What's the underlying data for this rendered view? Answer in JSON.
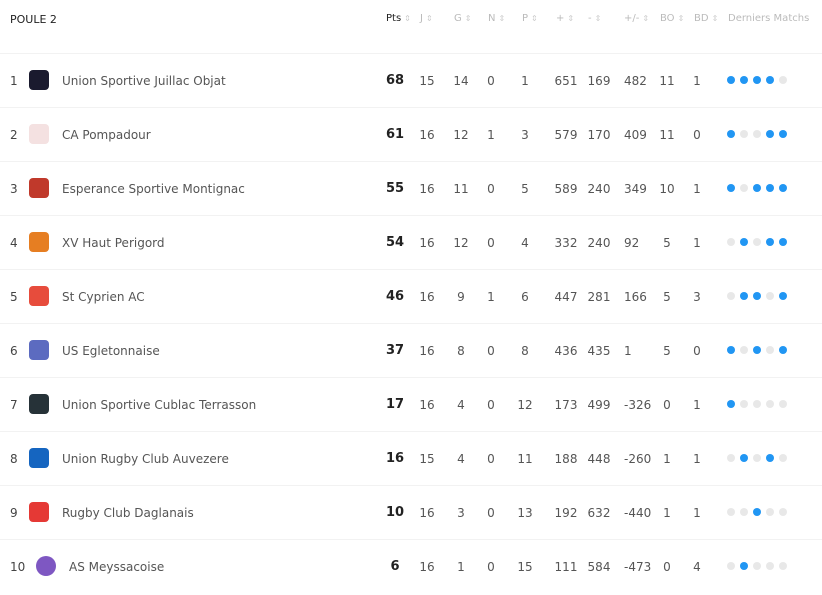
{
  "title": "POULE 2",
  "columns": [
    "Pts",
    "J",
    "G",
    "N",
    "P",
    "+",
    "-",
    "+/-",
    "BO",
    "BD",
    "Derniers Matchs"
  ],
  "colors": {
    "win": "#2196f3",
    "other": "#e8e8e8"
  },
  "rows": [
    {
      "rank": "1",
      "name": "Union Sportive Juillac Objat",
      "pts": "68",
      "j": "15",
      "g": "14",
      "n": "0",
      "p": "1",
      "plus": "651",
      "minus": "169",
      "diff": "482",
      "bo": "11",
      "bd": "1",
      "last": [
        1,
        1,
        1,
        1,
        0
      ],
      "logo": "#1a1a2e"
    },
    {
      "rank": "2",
      "name": "CA Pompadour",
      "pts": "61",
      "j": "16",
      "g": "12",
      "n": "1",
      "p": "3",
      "plus": "579",
      "minus": "170",
      "diff": "409",
      "bo": "11",
      "bd": "0",
      "last": [
        1,
        0,
        0,
        1,
        1
      ],
      "logo": "#f4e1e1"
    },
    {
      "rank": "3",
      "name": "Esperance Sportive Montignac",
      "pts": "55",
      "j": "16",
      "g": "11",
      "n": "0",
      "p": "5",
      "plus": "589",
      "minus": "240",
      "diff": "349",
      "bo": "10",
      "bd": "1",
      "last": [
        1,
        0,
        1,
        1,
        1
      ],
      "logo": "#c0392b"
    },
    {
      "rank": "4",
      "name": "XV Haut Perigord",
      "pts": "54",
      "j": "16",
      "g": "12",
      "n": "0",
      "p": "4",
      "plus": "332",
      "minus": "240",
      "diff": "92",
      "bo": "5",
      "bd": "1",
      "last": [
        0,
        1,
        0,
        1,
        1
      ],
      "logo": "#e67e22"
    },
    {
      "rank": "5",
      "name": "St Cyprien AC",
      "pts": "46",
      "j": "16",
      "g": "9",
      "n": "1",
      "p": "6",
      "plus": "447",
      "minus": "281",
      "diff": "166",
      "bo": "5",
      "bd": "3",
      "last": [
        0,
        1,
        1,
        0,
        1
      ],
      "logo": "#e74c3c"
    },
    {
      "rank": "6",
      "name": "US Egletonnaise",
      "pts": "37",
      "j": "16",
      "g": "8",
      "n": "0",
      "p": "8",
      "plus": "436",
      "minus": "435",
      "diff": "1",
      "bo": "5",
      "bd": "0",
      "last": [
        1,
        0,
        1,
        0,
        1
      ],
      "logo": "#5c6bc0"
    },
    {
      "rank": "7",
      "name": "Union Sportive Cublac Terrasson",
      "pts": "17",
      "j": "16",
      "g": "4",
      "n": "0",
      "p": "12",
      "plus": "173",
      "minus": "499",
      "diff": "-326",
      "bo": "0",
      "bd": "1",
      "last": [
        1,
        0,
        0,
        0,
        0
      ],
      "logo": "#263238"
    },
    {
      "rank": "8",
      "name": "Union Rugby Club Auvezere",
      "pts": "16",
      "j": "15",
      "g": "4",
      "n": "0",
      "p": "11",
      "plus": "188",
      "minus": "448",
      "diff": "-260",
      "bo": "1",
      "bd": "1",
      "last": [
        0,
        1,
        0,
        1,
        0
      ],
      "logo": "#1565c0"
    },
    {
      "rank": "9",
      "name": "Rugby Club Daglanais",
      "pts": "10",
      "j": "16",
      "g": "3",
      "n": "0",
      "p": "13",
      "plus": "192",
      "minus": "632",
      "diff": "-440",
      "bo": "1",
      "bd": "1",
      "last": [
        0,
        0,
        1,
        0,
        0
      ],
      "logo": "#e53935"
    },
    {
      "rank": "10",
      "name": "AS Meyssacoise",
      "pts": "6",
      "j": "16",
      "g": "1",
      "n": "0",
      "p": "15",
      "plus": "111",
      "minus": "584",
      "diff": "-473",
      "bo": "0",
      "bd": "4",
      "last": [
        0,
        1,
        0,
        0,
        0
      ],
      "logo": "#7e57c2"
    }
  ]
}
